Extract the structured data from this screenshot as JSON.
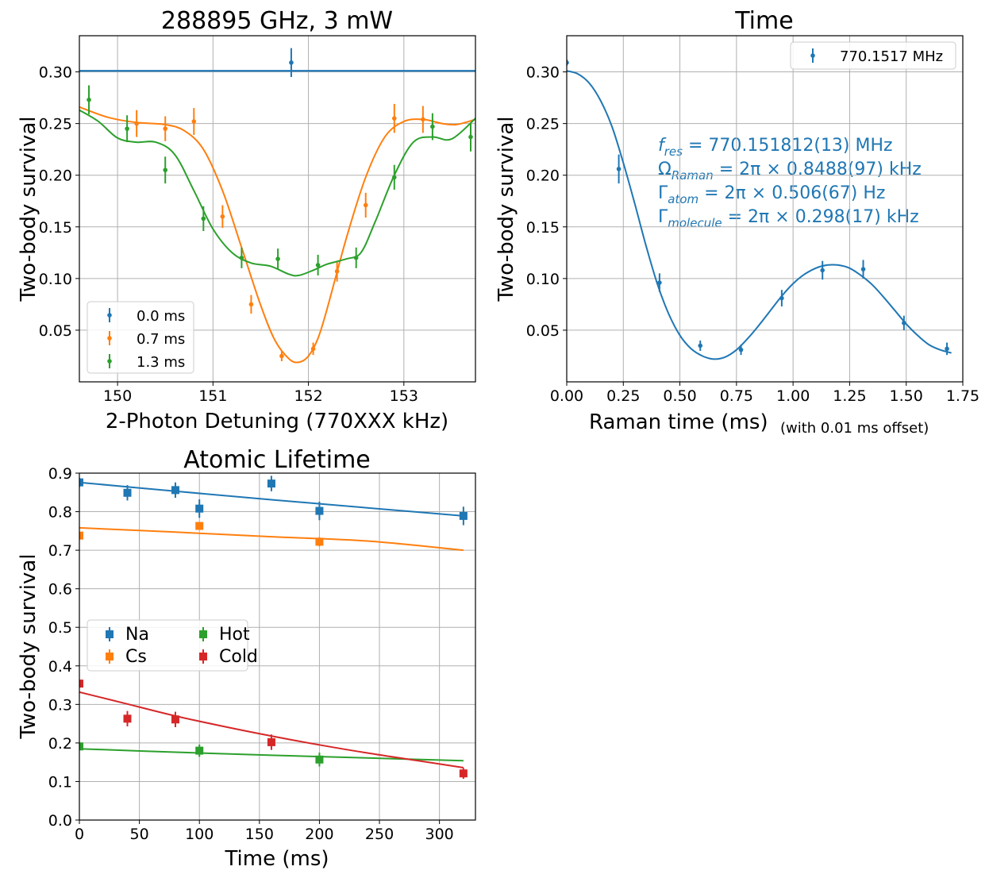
{
  "chart_data": [
    {
      "type": "scatter",
      "title": "288895 GHz, 3 mW",
      "xlabel": "2-Photon Detuning (770XXX kHz)",
      "ylabel": "Two-body survival",
      "xlim": [
        149.6,
        153.75
      ],
      "ylim": [
        0.0,
        0.335
      ],
      "xticks": [
        150,
        151,
        152,
        153
      ],
      "yticks": [
        0.05,
        0.1,
        0.15,
        0.2,
        0.25,
        0.3
      ],
      "ytick_labels": [
        "0.05",
        "0.10",
        "0.15",
        "0.20",
        "0.25",
        "0.30"
      ],
      "grid": true,
      "legend_position": "lower-left",
      "series": [
        {
          "name": "0.0 ms",
          "color": "#1f77b4",
          "points": [
            [
              151.82,
              0.309,
              0.014
            ]
          ],
          "fit": {
            "kind": "constant",
            "y": 0.301
          }
        },
        {
          "name": "0.7 ms",
          "color": "#ff7f0e",
          "points": [
            [
              150.2,
              0.25,
              0.013
            ],
            [
              150.5,
              0.245,
              0.012
            ],
            [
              150.8,
              0.252,
              0.013
            ],
            [
              151.1,
              0.16,
              0.011
            ],
            [
              151.4,
              0.075,
              0.009
            ],
            [
              151.72,
              0.025,
              0.005
            ],
            [
              152.05,
              0.032,
              0.006
            ],
            [
              152.3,
              0.107,
              0.01
            ],
            [
              152.6,
              0.171,
              0.012
            ],
            [
              152.9,
              0.255,
              0.014
            ],
            [
              153.2,
              0.254,
              0.013
            ]
          ],
          "fit": {
            "kind": "curve",
            "points": [
              [
                149.6,
                0.266
              ],
              [
                149.9,
                0.256
              ],
              [
                150.2,
                0.251
              ],
              [
                150.5,
                0.249
              ],
              [
                150.7,
                0.243
              ],
              [
                150.9,
                0.225
              ],
              [
                151.1,
                0.185
              ],
              [
                151.3,
                0.13
              ],
              [
                151.5,
                0.074
              ],
              [
                151.65,
                0.04
              ],
              [
                151.8,
                0.022
              ],
              [
                151.9,
                0.019
              ],
              [
                152.0,
                0.025
              ],
              [
                152.1,
                0.042
              ],
              [
                152.2,
                0.072
              ],
              [
                152.4,
                0.14
              ],
              [
                152.6,
                0.198
              ],
              [
                152.8,
                0.237
              ],
              [
                153.0,
                0.252
              ],
              [
                153.2,
                0.254
              ],
              [
                153.4,
                0.25
              ],
              [
                153.55,
                0.249
              ],
              [
                153.75,
                0.254
              ]
            ]
          }
        },
        {
          "name": "1.3 ms",
          "color": "#2ca02c",
          "points": [
            [
              149.7,
              0.273,
              0.014
            ],
            [
              150.1,
              0.245,
              0.013
            ],
            [
              150.5,
              0.205,
              0.013
            ],
            [
              150.9,
              0.158,
              0.012
            ],
            [
              151.3,
              0.12,
              0.01
            ],
            [
              151.68,
              0.119,
              0.01
            ],
            [
              152.1,
              0.113,
              0.01
            ],
            [
              152.5,
              0.12,
              0.01
            ],
            [
              152.9,
              0.198,
              0.012
            ],
            [
              153.3,
              0.247,
              0.013
            ],
            [
              153.7,
              0.237,
              0.014
            ]
          ],
          "fit": {
            "kind": "curve",
            "points": [
              [
                149.6,
                0.263
              ],
              [
                149.8,
                0.252
              ],
              [
                150.0,
                0.236
              ],
              [
                150.2,
                0.232
              ],
              [
                150.4,
                0.232
              ],
              [
                150.6,
                0.22
              ],
              [
                150.8,
                0.185
              ],
              [
                151.0,
                0.148
              ],
              [
                151.2,
                0.125
              ],
              [
                151.4,
                0.115
              ],
              [
                151.6,
                0.112
              ],
              [
                151.8,
                0.104
              ],
              [
                151.9,
                0.103
              ],
              [
                152.05,
                0.108
              ],
              [
                152.2,
                0.114
              ],
              [
                152.4,
                0.119
              ],
              [
                152.55,
                0.125
              ],
              [
                152.7,
                0.155
              ],
              [
                152.9,
                0.2
              ],
              [
                153.1,
                0.232
              ],
              [
                153.3,
                0.237
              ],
              [
                153.5,
                0.235
              ],
              [
                153.75,
                0.255
              ]
            ]
          }
        }
      ]
    },
    {
      "type": "scatter",
      "title": "Time",
      "xlabel": "Raman time (ms)",
      "xlabel_note": "(with 0.01 ms offset)",
      "ylabel": "Two-body survival",
      "xlim": [
        0.0,
        1.75
      ],
      "ylim": [
        0.0,
        0.335
      ],
      "xticks": [
        0.0,
        0.25,
        0.5,
        0.75,
        1.0,
        1.25,
        1.5,
        1.75
      ],
      "xtick_labels": [
        "0.00",
        "0.25",
        "0.50",
        "0.75",
        "1.00",
        "1.25",
        "1.50",
        "1.75"
      ],
      "yticks": [
        0.05,
        0.1,
        0.15,
        0.2,
        0.25,
        0.3
      ],
      "ytick_labels": [
        "0.05",
        "0.10",
        "0.15",
        "0.20",
        "0.25",
        "0.30"
      ],
      "grid": true,
      "legend_position": "top-right",
      "annotation": {
        "f_res": {
          "sym": "f",
          "sub": "res",
          "rest": " = 770.151812(13) MHz"
        },
        "omega": {
          "sym": "Ω",
          "sub": "Raman",
          "rest": " = 2π × 0.8488(97) kHz"
        },
        "gamma_atom": {
          "sym": "Γ",
          "sub": "atom",
          "rest": " = 2π × 0.506(67) Hz"
        },
        "gamma_molecule": {
          "sym": "Γ",
          "sub": "molecule",
          "rest": " = 2π × 0.298(17) kHz"
        }
      },
      "series": [
        {
          "name": "770.1517 MHz",
          "color": "#1f77b4",
          "points": [
            [
              0.0,
              0.309,
              0.003
            ],
            [
              0.23,
              0.206,
              0.014
            ],
            [
              0.41,
              0.096,
              0.009
            ],
            [
              0.59,
              0.035,
              0.005
            ],
            [
              0.77,
              0.031,
              0.005
            ],
            [
              0.95,
              0.081,
              0.008
            ],
            [
              1.13,
              0.108,
              0.009
            ],
            [
              1.31,
              0.109,
              0.009
            ],
            [
              1.49,
              0.057,
              0.007
            ],
            [
              1.68,
              0.032,
              0.006
            ]
          ],
          "fit": {
            "kind": "curve",
            "points": [
              [
                0.0,
                0.301
              ],
              [
                0.05,
                0.298
              ],
              [
                0.1,
                0.289
              ],
              [
                0.15,
                0.272
              ],
              [
                0.2,
                0.247
              ],
              [
                0.25,
                0.212
              ],
              [
                0.3,
                0.173
              ],
              [
                0.35,
                0.132
              ],
              [
                0.4,
                0.095
              ],
              [
                0.45,
                0.066
              ],
              [
                0.5,
                0.045
              ],
              [
                0.55,
                0.032
              ],
              [
                0.6,
                0.025
              ],
              [
                0.65,
                0.022
              ],
              [
                0.7,
                0.024
              ],
              [
                0.75,
                0.031
              ],
              [
                0.8,
                0.042
              ],
              [
                0.85,
                0.055
              ],
              [
                0.9,
                0.069
              ],
              [
                0.95,
                0.083
              ],
              [
                1.0,
                0.095
              ],
              [
                1.05,
                0.104
              ],
              [
                1.1,
                0.11
              ],
              [
                1.15,
                0.113
              ],
              [
                1.2,
                0.113
              ],
              [
                1.25,
                0.11
              ],
              [
                1.3,
                0.103
              ],
              [
                1.35,
                0.094
              ],
              [
                1.4,
                0.082
              ],
              [
                1.45,
                0.069
              ],
              [
                1.5,
                0.056
              ],
              [
                1.55,
                0.045
              ],
              [
                1.6,
                0.036
              ],
              [
                1.65,
                0.031
              ],
              [
                1.7,
                0.028
              ]
            ]
          }
        }
      ]
    },
    {
      "type": "scatter",
      "title": "Atomic Lifetime",
      "xlabel": "Time (ms)",
      "ylabel": "Two-body survival",
      "xlim": [
        0,
        330
      ],
      "ylim": [
        0.0,
        0.9
      ],
      "xticks": [
        0,
        50,
        100,
        150,
        200,
        250,
        300
      ],
      "xtick_labels": [
        "0",
        "50",
        "100",
        "150",
        "200",
        "250",
        "300"
      ],
      "yticks": [
        0.0,
        0.1,
        0.2,
        0.3,
        0.4,
        0.5,
        0.6,
        0.7,
        0.8,
        0.9
      ],
      "ytick_labels": [
        "0.0",
        "0.1",
        "0.2",
        "0.3",
        "0.4",
        "0.5",
        "0.6",
        "0.7",
        "0.8",
        "0.9"
      ],
      "grid": true,
      "legend_position": "center-left",
      "series": [
        {
          "name": "Na",
          "color": "#1f77b4",
          "points": [
            [
              0,
              0.876,
              0.012
            ],
            [
              40,
              0.849,
              0.02
            ],
            [
              80,
              0.856,
              0.02
            ],
            [
              100,
              0.808,
              0.024
            ],
            [
              160,
              0.873,
              0.02
            ],
            [
              200,
              0.802,
              0.024
            ],
            [
              320,
              0.789,
              0.024
            ]
          ],
          "fit": {
            "kind": "curve",
            "points": [
              [
                0,
                0.876
              ],
              [
                80,
                0.853
              ],
              [
                160,
                0.831
              ],
              [
                240,
                0.81
              ],
              [
                320,
                0.789
              ]
            ]
          }
        },
        {
          "name": "Cs",
          "color": "#ff7f0e",
          "points": [
            [
              0,
              0.738,
              0.008
            ],
            [
              100,
              0.763,
              0.01
            ],
            [
              200,
              0.722,
              0.012
            ]
          ],
          "fit": {
            "kind": "curve",
            "points": [
              [
                0,
                0.758
              ],
              [
                80,
                0.747
              ],
              [
                160,
                0.735
              ],
              [
                240,
                0.724
              ],
              [
                320,
                0.7
              ]
            ]
          }
        },
        {
          "name": "Hot",
          "color": "#2ca02c",
          "points": [
            [
              0,
              0.191,
              0.01
            ],
            [
              100,
              0.18,
              0.016
            ],
            [
              200,
              0.157,
              0.018
            ]
          ],
          "fit": {
            "kind": "curve",
            "points": [
              [
                0,
                0.185
              ],
              [
                80,
                0.176
              ],
              [
                160,
                0.168
              ],
              [
                240,
                0.161
              ],
              [
                320,
                0.154
              ]
            ]
          }
        },
        {
          "name": "Cold",
          "color": "#d62728",
          "points": [
            [
              0,
              0.354,
              0.01
            ],
            [
              40,
              0.263,
              0.02
            ],
            [
              80,
              0.261,
              0.02
            ],
            [
              160,
              0.202,
              0.02
            ],
            [
              320,
              0.121,
              0.014
            ]
          ],
          "fit": {
            "kind": "curve",
            "points": [
              [
                0,
                0.332
              ],
              [
                40,
                0.301
              ],
              [
                80,
                0.27
              ],
              [
                120,
                0.243
              ],
              [
                160,
                0.218
              ],
              [
                200,
                0.195
              ],
              [
                240,
                0.174
              ],
              [
                280,
                0.155
              ],
              [
                320,
                0.136
              ]
            ]
          }
        }
      ]
    }
  ]
}
